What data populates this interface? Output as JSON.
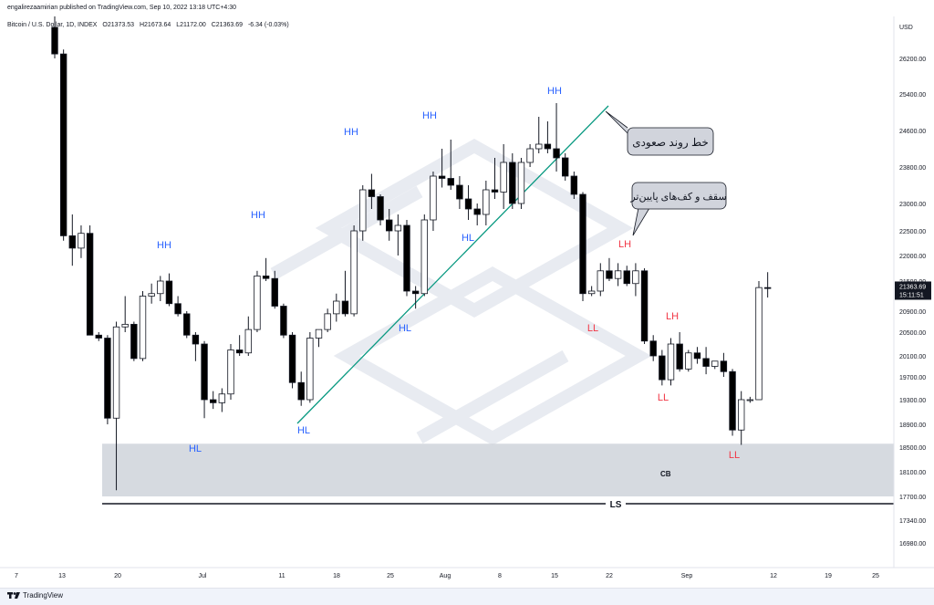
{
  "header": {
    "published": "engalirezaamirian published on TradingView.com, Sep 10, 2022 13:18 UTC+4:30"
  },
  "legend": {
    "symbol": "Bitcoin / U.S. Dollar, 1D, INDEX",
    "open": "O21373.53",
    "high": "H21673.64",
    "low": "L21172.00",
    "close": "C21363.69",
    "change": "-6.34 (-0.03%)"
  },
  "price_axis": {
    "currency": "USD",
    "last_price": "21363.69",
    "countdown": "15:11:51"
  },
  "footer": {
    "brand": "TradingView"
  },
  "colors": {
    "trendline": "#089981",
    "blue_label": "#2962ff",
    "red_label": "#f23645",
    "zone": "#cfd3db",
    "up": "#ffffff",
    "down": "#000000"
  },
  "chart_data": {
    "type": "candlestick",
    "title": "Bitcoin / U.S. Dollar, 1D, INDEX",
    "y_ticks": [
      26200,
      25400,
      24600,
      23800,
      23000,
      22500,
      22000,
      21500,
      20900,
      20500,
      20100,
      19700,
      19300,
      18900,
      18500,
      18100,
      17700,
      17340,
      16980
    ],
    "y_tick_labels": [
      "26200.00",
      "25400.00",
      "24600.00",
      "23800.00",
      "23000.00",
      "22500.00",
      "22000.00",
      "21500.00",
      "20900.00",
      "20500.00",
      "20100.00",
      "19700.00",
      "19300.00",
      "18900.00",
      "18500.00",
      "18100.00",
      "17700.00",
      "17340.00",
      "16980.00"
    ],
    "x_tick_labels": [
      "7",
      "13",
      "20",
      "Jul",
      "11",
      "18",
      "25",
      "Aug",
      "8",
      "15",
      "22",
      "Sep",
      "12",
      "19",
      "25"
    ],
    "candles": [
      {
        "o": 26900,
        "h": 27500,
        "l": 26200,
        "c": 26300
      },
      {
        "o": 26300,
        "h": 26400,
        "l": 22300,
        "c": 22400
      },
      {
        "o": 22400,
        "h": 22800,
        "l": 21800,
        "c": 22150
      },
      {
        "o": 22150,
        "h": 22600,
        "l": 21950,
        "c": 22450
      },
      {
        "o": 22450,
        "h": 22600,
        "l": 20500,
        "c": 20450
      },
      {
        "o": 20450,
        "h": 20500,
        "l": 20350,
        "c": 20400
      },
      {
        "o": 20400,
        "h": 20450,
        "l": 18900,
        "c": 19000
      },
      {
        "o": 19000,
        "h": 20700,
        "l": 17800,
        "c": 20600
      },
      {
        "o": 20600,
        "h": 21200,
        "l": 20500,
        "c": 20650
      },
      {
        "o": 20650,
        "h": 20700,
        "l": 20000,
        "c": 20050
      },
      {
        "o": 20050,
        "h": 21300,
        "l": 20000,
        "c": 21200
      },
      {
        "o": 21200,
        "h": 21450,
        "l": 21050,
        "c": 21250
      },
      {
        "o": 21250,
        "h": 21600,
        "l": 21100,
        "c": 21500
      },
      {
        "o": 21500,
        "h": 21650,
        "l": 21000,
        "c": 21050
      },
      {
        "o": 21050,
        "h": 21200,
        "l": 20800,
        "c": 20850
      },
      {
        "o": 20850,
        "h": 20900,
        "l": 20400,
        "c": 20450
      },
      {
        "o": 20450,
        "h": 20500,
        "l": 20000,
        "c": 20300
      },
      {
        "o": 20300,
        "h": 20350,
        "l": 19000,
        "c": 19300
      },
      {
        "o": 19300,
        "h": 19450,
        "l": 19150,
        "c": 19250
      },
      {
        "o": 19250,
        "h": 19500,
        "l": 19100,
        "c": 19400
      },
      {
        "o": 19400,
        "h": 20300,
        "l": 19300,
        "c": 20200
      },
      {
        "o": 20200,
        "h": 20450,
        "l": 20100,
        "c": 20150
      },
      {
        "o": 20150,
        "h": 20800,
        "l": 20100,
        "c": 20550
      },
      {
        "o": 20550,
        "h": 21700,
        "l": 20500,
        "c": 21600
      },
      {
        "o": 21600,
        "h": 21950,
        "l": 21500,
        "c": 21550
      },
      {
        "o": 21550,
        "h": 21700,
        "l": 20950,
        "c": 21000
      },
      {
        "o": 21000,
        "h": 21050,
        "l": 20400,
        "c": 20450
      },
      {
        "o": 20450,
        "h": 20500,
        "l": 19500,
        "c": 19600
      },
      {
        "o": 19600,
        "h": 19800,
        "l": 19200,
        "c": 19300
      },
      {
        "o": 19300,
        "h": 20500,
        "l": 19250,
        "c": 20400
      },
      {
        "o": 20400,
        "h": 20550,
        "l": 20250,
        "c": 20550
      },
      {
        "o": 20550,
        "h": 20950,
        "l": 20500,
        "c": 20850
      },
      {
        "o": 20850,
        "h": 21250,
        "l": 20700,
        "c": 21100
      },
      {
        "o": 21100,
        "h": 21700,
        "l": 20800,
        "c": 20850
      },
      {
        "o": 20850,
        "h": 22600,
        "l": 20800,
        "c": 22500
      },
      {
        "o": 22500,
        "h": 23400,
        "l": 22300,
        "c": 23300
      },
      {
        "o": 23300,
        "h": 23650,
        "l": 22900,
        "c": 23150
      },
      {
        "o": 23150,
        "h": 23200,
        "l": 22600,
        "c": 22700
      },
      {
        "o": 22700,
        "h": 22900,
        "l": 22300,
        "c": 22500
      },
      {
        "o": 22500,
        "h": 22800,
        "l": 22000,
        "c": 22600
      },
      {
        "o": 22600,
        "h": 22700,
        "l": 21200,
        "c": 21300
      },
      {
        "o": 21300,
        "h": 21400,
        "l": 20950,
        "c": 21250
      },
      {
        "o": 21250,
        "h": 22800,
        "l": 21200,
        "c": 22700
      },
      {
        "o": 22700,
        "h": 23700,
        "l": 22500,
        "c": 23600
      },
      {
        "o": 23600,
        "h": 24200,
        "l": 23350,
        "c": 23550
      },
      {
        "o": 23550,
        "h": 24400,
        "l": 23300,
        "c": 23400
      },
      {
        "o": 23400,
        "h": 23600,
        "l": 22900,
        "c": 23100
      },
      {
        "o": 23100,
        "h": 23400,
        "l": 22700,
        "c": 22900
      },
      {
        "o": 22900,
        "h": 23000,
        "l": 22600,
        "c": 22800
      },
      {
        "o": 22800,
        "h": 23500,
        "l": 22600,
        "c": 23300
      },
      {
        "o": 23300,
        "h": 24000,
        "l": 23100,
        "c": 23250
      },
      {
        "o": 23250,
        "h": 24300,
        "l": 22900,
        "c": 23900
      },
      {
        "o": 23900,
        "h": 24100,
        "l": 22900,
        "c": 23000
      },
      {
        "o": 23000,
        "h": 24000,
        "l": 22900,
        "c": 23900
      },
      {
        "o": 23900,
        "h": 24300,
        "l": 23800,
        "c": 24200
      },
      {
        "o": 24200,
        "h": 24900,
        "l": 24100,
        "c": 24300
      },
      {
        "o": 24300,
        "h": 24800,
        "l": 24100,
        "c": 24200
      },
      {
        "o": 24200,
        "h": 25200,
        "l": 23700,
        "c": 24000
      },
      {
        "o": 24000,
        "h": 24100,
        "l": 23500,
        "c": 23600
      },
      {
        "o": 23600,
        "h": 23700,
        "l": 23100,
        "c": 23200
      },
      {
        "o": 23200,
        "h": 23250,
        "l": 21100,
        "c": 21250
      },
      {
        "o": 21250,
        "h": 21400,
        "l": 21200,
        "c": 21300
      },
      {
        "o": 21300,
        "h": 21850,
        "l": 21200,
        "c": 21700
      },
      {
        "o": 21700,
        "h": 21950,
        "l": 21500,
        "c": 21550
      },
      {
        "o": 21550,
        "h": 21850,
        "l": 21400,
        "c": 21700
      },
      {
        "o": 21700,
        "h": 21800,
        "l": 21400,
        "c": 21450
      },
      {
        "o": 21450,
        "h": 21850,
        "l": 21200,
        "c": 21700
      },
      {
        "o": 21700,
        "h": 21750,
        "l": 20300,
        "c": 20350
      },
      {
        "o": 20350,
        "h": 20450,
        "l": 20000,
        "c": 20100
      },
      {
        "o": 20100,
        "h": 20200,
        "l": 19550,
        "c": 19650
      },
      {
        "o": 19650,
        "h": 20400,
        "l": 19550,
        "c": 20300
      },
      {
        "o": 20300,
        "h": 20500,
        "l": 19800,
        "c": 19850
      },
      {
        "o": 19850,
        "h": 20200,
        "l": 19800,
        "c": 20150
      },
      {
        "o": 20150,
        "h": 20250,
        "l": 19950,
        "c": 20050
      },
      {
        "o": 20050,
        "h": 20250,
        "l": 19750,
        "c": 19900
      },
      {
        "o": 19900,
        "h": 20000,
        "l": 19850,
        "c": 20000
      },
      {
        "o": 20000,
        "h": 20150,
        "l": 19700,
        "c": 19800
      },
      {
        "o": 19800,
        "h": 19850,
        "l": 18700,
        "c": 18800
      },
      {
        "o": 18800,
        "h": 19450,
        "l": 18540,
        "c": 19300
      },
      {
        "o": 19300,
        "h": 19350,
        "l": 19250,
        "c": 19300
      },
      {
        "o": 19300,
        "h": 21500,
        "l": 19300,
        "c": 21370
      },
      {
        "o": 21370,
        "h": 21674,
        "l": 21172,
        "c": 21364
      }
    ],
    "annotations": {
      "labels": [
        {
          "text": "HH",
          "color": "blue"
        },
        {
          "text": "HL",
          "color": "blue"
        },
        {
          "text": "HH",
          "color": "blue"
        },
        {
          "text": "HL",
          "color": "blue"
        },
        {
          "text": "HH",
          "color": "blue"
        },
        {
          "text": "HL",
          "color": "blue"
        },
        {
          "text": "HH",
          "color": "blue"
        },
        {
          "text": "HL",
          "color": "blue"
        },
        {
          "text": "HH",
          "color": "blue"
        },
        {
          "text": "LH",
          "color": "red"
        },
        {
          "text": "LL",
          "color": "red"
        },
        {
          "text": "LH",
          "color": "red"
        },
        {
          "text": "LL",
          "color": "red"
        },
        {
          "text": "LL",
          "color": "red"
        }
      ],
      "callout_trendline": "خط روند صعودی",
      "callout_lower_swings": "سقف و کف‌های پایین‌تر",
      "zone_label": "CB",
      "level_label": "LS",
      "zone_range": [
        17700,
        18560
      ]
    }
  }
}
